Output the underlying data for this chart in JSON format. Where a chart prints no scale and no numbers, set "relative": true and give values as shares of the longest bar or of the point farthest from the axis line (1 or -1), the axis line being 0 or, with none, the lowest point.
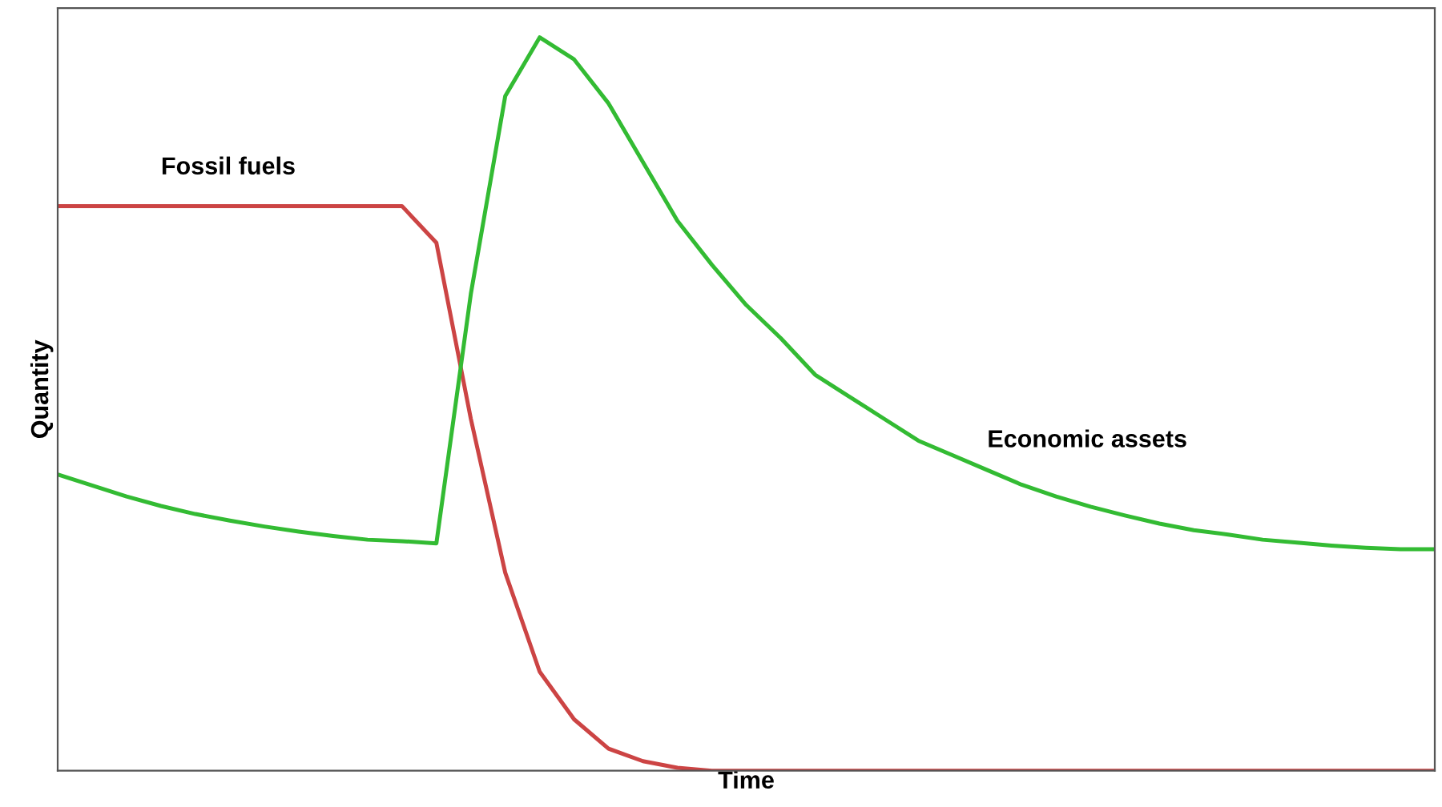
{
  "chart_data": {
    "type": "line",
    "relative": true,
    "xlabel": "Time",
    "ylabel": "Quantity",
    "tick_labels": false,
    "marker": "none",
    "line_style": "solid",
    "categories": [
      null,
      null,
      null,
      null,
      null,
      null,
      null,
      null,
      null,
      null,
      null,
      null,
      null,
      null,
      null,
      null,
      null,
      null,
      null,
      null,
      null,
      null,
      null,
      null,
      null,
      null,
      null,
      null,
      null,
      null,
      null,
      null,
      null,
      null,
      null,
      null,
      null,
      null,
      null,
      null,
      null
    ],
    "series": [
      {
        "name": "Fossil fuels",
        "color": "#cc4444",
        "values": [
          0.77,
          0.77,
          0.77,
          0.77,
          0.77,
          0.77,
          0.77,
          0.77,
          0.77,
          0.77,
          0.77,
          0.72,
          0.48,
          0.27,
          0.135,
          0.07,
          0.03,
          0.013,
          0.004,
          0,
          0,
          0,
          0,
          0,
          0,
          0,
          0,
          0,
          0,
          0,
          0,
          0,
          0,
          0,
          0,
          0,
          0,
          0,
          0,
          0,
          0
        ]
      },
      {
        "name": "Economic assets",
        "color": "#33bb33",
        "values": [
          0.404,
          0.389,
          0.374,
          0.361,
          0.35,
          0.341,
          0.333,
          0.326,
          0.32,
          0.315,
          0.313,
          0.31,
          0.65,
          0.92,
          1.0,
          0.97,
          0.91,
          0.83,
          0.75,
          0.69,
          0.635,
          0.59,
          0.54,
          0.51,
          0.48,
          0.45,
          0.43,
          0.41,
          0.39,
          0.374,
          0.36,
          0.348,
          0.337,
          0.328,
          0.322,
          0.315,
          0.311,
          0.307,
          0.304,
          0.302,
          0.302
        ]
      }
    ]
  }
}
